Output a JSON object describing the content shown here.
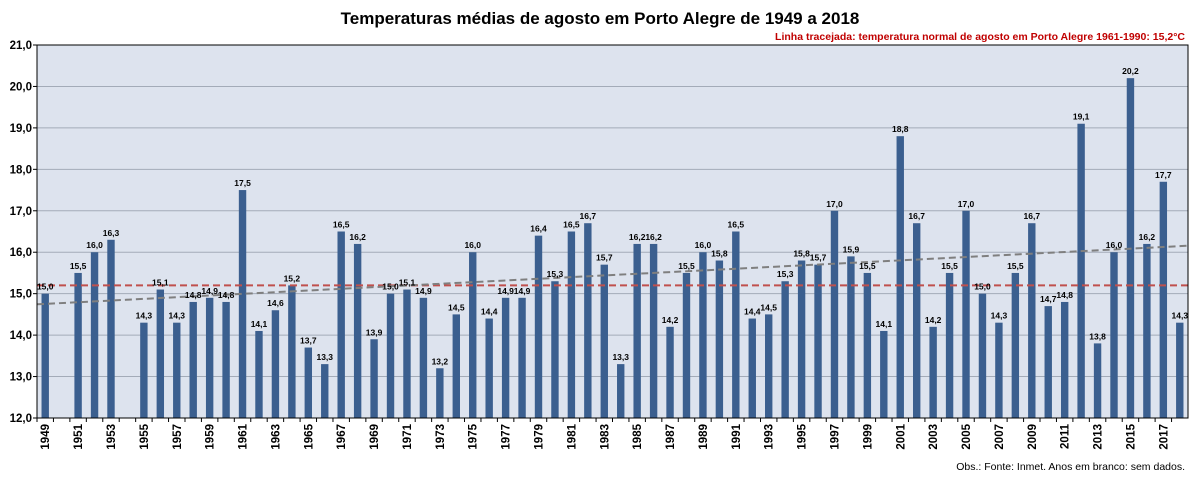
{
  "chart_data": {
    "type": "bar",
    "title": "Temperaturas médias de agosto em Porto Alegre de 1949 a 2018",
    "annotation": "Linha tracejada: temperatura normal de agosto em Porto Alegre 1961-1990: 15,2°C",
    "source_note": "Obs.: Fonte: Inmet. Anos em branco: sem dados.",
    "reference_line": 15.2,
    "ylim": [
      12.0,
      21.0
    ],
    "yticks": [
      "12,0",
      "13,0",
      "14,0",
      "15,0",
      "16,0",
      "17,0",
      "18,0",
      "19,0",
      "20,0",
      "21,0"
    ],
    "categories": [
      1949,
      1950,
      1951,
      1952,
      1953,
      1954,
      1955,
      1956,
      1957,
      1958,
      1959,
      1960,
      1961,
      1962,
      1963,
      1964,
      1965,
      1966,
      1967,
      1968,
      1969,
      1970,
      1971,
      1972,
      1973,
      1974,
      1975,
      1976,
      1977,
      1978,
      1979,
      1980,
      1981,
      1982,
      1983,
      1984,
      1985,
      1986,
      1987,
      1988,
      1989,
      1990,
      1991,
      1992,
      1993,
      1994,
      1995,
      1996,
      1997,
      1998,
      1999,
      2000,
      2001,
      2002,
      2003,
      2004,
      2005,
      2006,
      2007,
      2008,
      2009,
      2010,
      2011,
      2012,
      2013,
      2014,
      2015,
      2016,
      2017,
      2018
    ],
    "xtick_labels": [
      "1949",
      "1951",
      "1953",
      "1955",
      "1957",
      "1959",
      "1961",
      "1963",
      "1965",
      "1967",
      "1969",
      "1971",
      "1973",
      "1975",
      "1977",
      "1979",
      "1981",
      "1983",
      "1985",
      "1987",
      "1989",
      "1991",
      "1993",
      "1995",
      "1997",
      "1999",
      "2001",
      "2003",
      "2005",
      "2007",
      "2009",
      "2011",
      "2013",
      "2015",
      "2017"
    ],
    "values": [
      15.0,
      null,
      15.5,
      16.0,
      16.3,
      null,
      14.3,
      15.1,
      14.3,
      14.8,
      14.9,
      14.8,
      17.5,
      14.1,
      14.6,
      15.2,
      13.7,
      13.3,
      16.5,
      16.2,
      13.9,
      15.0,
      15.1,
      14.9,
      13.2,
      14.5,
      16.0,
      14.4,
      14.9,
      14.9,
      16.4,
      15.3,
      16.5,
      16.7,
      15.7,
      13.3,
      16.2,
      16.2,
      14.2,
      15.5,
      16.0,
      15.8,
      16.5,
      14.4,
      14.5,
      15.3,
      15.8,
      15.7,
      17.0,
      15.9,
      15.5,
      14.1,
      18.8,
      16.7,
      14.2,
      15.5,
      17.0,
      15.0,
      14.3,
      15.5,
      16.7,
      14.7,
      14.8,
      19.1,
      13.8,
      16.0,
      20.2,
      16.2,
      17.7,
      14.3
    ],
    "value_labels": [
      "15,0",
      "",
      "15,5",
      "16,0",
      "16,3",
      "",
      "14,3",
      "15,1",
      "14,3",
      "14,8",
      "14,9",
      "14,8",
      "17,5",
      "14,1",
      "14,6",
      "15,2",
      "13,7",
      "13,3",
      "16,5",
      "16,2",
      "13,9",
      "15,0",
      "15,1",
      "14,9",
      "13,2",
      "14,5",
      "16,0",
      "14,4",
      "14,9",
      "14,9",
      "16,4",
      "15,3",
      "16,5",
      "16,7",
      "15,7",
      "13,3",
      "16,2",
      "16,2",
      "14,2",
      "15,5",
      "16,0",
      "15,8",
      "16,5",
      "14,4",
      "14,5",
      "15,3",
      "15,8",
      "15,7",
      "17,0",
      "15,9",
      "15,5",
      "14,1",
      "18,8",
      "16,7",
      "14,2",
      "15,5",
      "17,0",
      "15,0",
      "14,3",
      "15,5",
      "16,7",
      "14,7",
      "14,8",
      "19,1",
      "13,8",
      "16,0",
      "20,2",
      "16,2",
      "17,7",
      "14,3"
    ],
    "grid": true,
    "colors": {
      "bar": "#3b5f8f",
      "plot_bg": "#dde3ee",
      "grid": "#a3abb8",
      "reference": "#c0504d",
      "trend": "#7f7f7f",
      "annotation": "#c00000"
    }
  }
}
